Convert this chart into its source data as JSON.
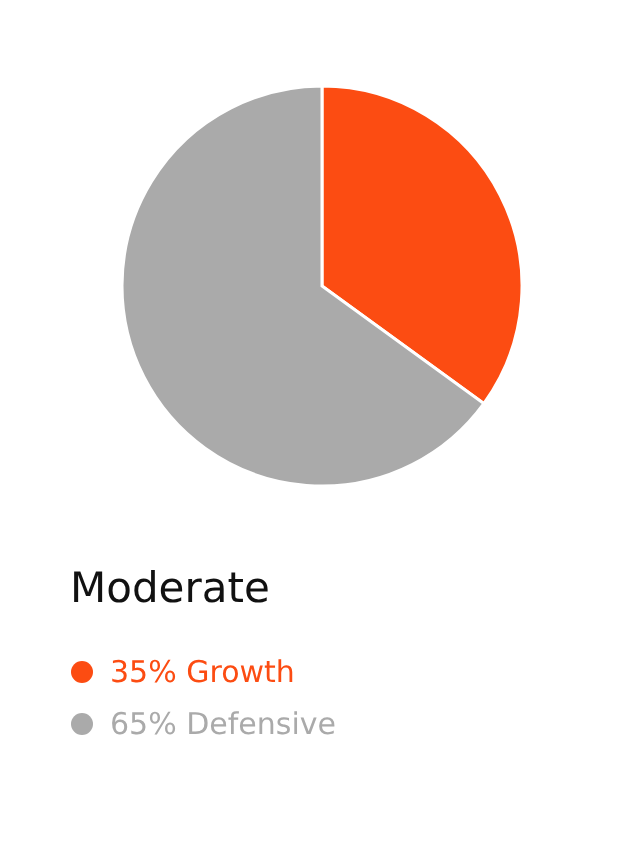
{
  "chart_data": {
    "type": "pie",
    "title": "Moderate",
    "categories": [
      "Growth",
      "Defensive"
    ],
    "values": [
      35,
      65
    ],
    "colors": [
      "#fc4c12",
      "#aaaaaa"
    ],
    "value_labels": [
      "35%",
      "65%"
    ],
    "legend": "bottom"
  }
}
